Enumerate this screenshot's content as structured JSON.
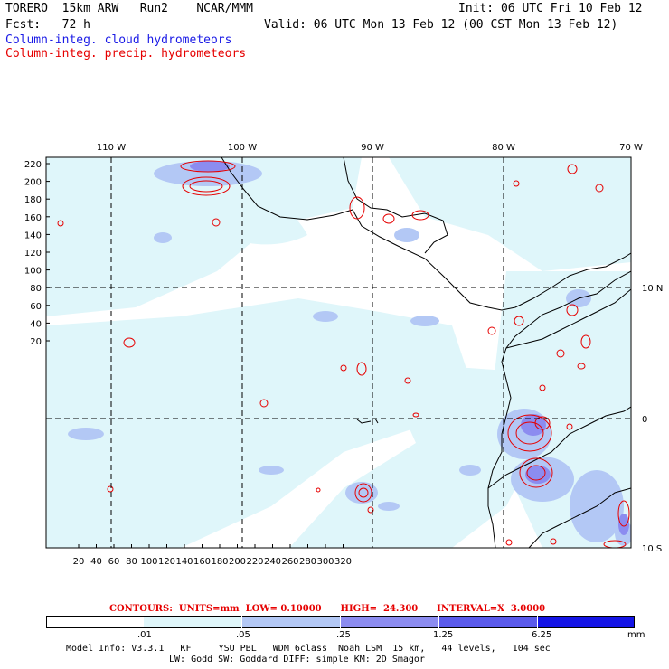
{
  "header": {
    "model_line": "TORERO  15km ARW   Run2    NCAR/MMM",
    "init_line": "Init: 06 UTC Fri 10 Feb 12",
    "fcst_line": "Fcst:   72 h",
    "valid_line": "Valid: 06 UTC Mon 13 Feb 12 (00 CST Mon 13 Feb 12)",
    "field1": "Column-integ. cloud hydrometeors",
    "field2": "Column-integ. precip. hydrometeors"
  },
  "axes": {
    "top_lon_labels": [
      "110 W",
      "100 W",
      "90 W",
      "80 W",
      "70 W"
    ],
    "right_lat_labels": [
      "10 N",
      "0",
      "10 S"
    ],
    "y_ticks": [
      "220",
      "200",
      "180",
      "160",
      "140",
      "120",
      "100",
      "80",
      "60",
      "40",
      "20"
    ],
    "x_ticks": [
      "20",
      "40",
      "60",
      "80",
      "100",
      "120",
      "140",
      "160",
      "180",
      "200",
      "220",
      "240",
      "260",
      "280",
      "300",
      "320"
    ]
  },
  "contours": {
    "label": "CONTOURS:  UNITS=mm  LOW= 0.10000      HIGH=  24.300      INTERVAL=X  3.0000"
  },
  "colorbar": {
    "levels": [
      ".01",
      ".05",
      ".25",
      "1.25",
      "6.25"
    ],
    "unit": "mm",
    "colors": [
      "#ffffff",
      "#dff6fa",
      "#b3c8f5",
      "#8c8cf0",
      "#5a5aeb",
      "#1414e6"
    ]
  },
  "footer": {
    "line1": "Model Info: V3.3.1   KF     YSU PBL   WDM 6class  Noah LSM  15 km,   44 levels,   104 sec",
    "line2": "LW: Godd SW: Goddard DIFF: simple KM: 2D Smagor"
  },
  "colors": {
    "cloud_light": "#dff6fa",
    "cloud_mid": "#b3c8f5",
    "cloud_dark": "#8c8cf0",
    "precip_contour": "#e60000"
  }
}
